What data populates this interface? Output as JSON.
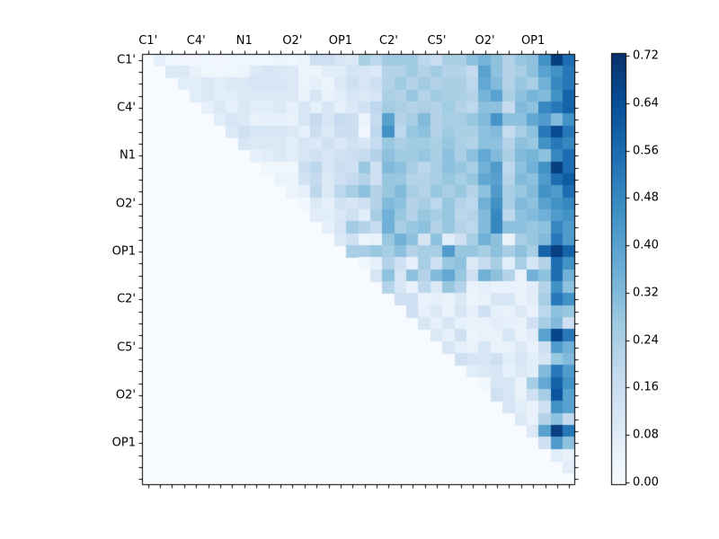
{
  "chart_data": {
    "type": "heatmap",
    "title": "",
    "xlabel": "",
    "ylabel": "",
    "n": 36,
    "label_every": 4,
    "x_tick_labels": [
      "C1'",
      "C4'",
      "N1",
      "O2'",
      "OP1",
      "C2'",
      "C5'",
      "O2'",
      "OP1"
    ],
    "y_tick_labels": [
      "C1'",
      "C4'",
      "N1",
      "O2'",
      "OP1",
      "C2'",
      "C5'",
      "O2'",
      "OP1"
    ],
    "grid": false,
    "triangle": "upper",
    "colormap_name": "Blues",
    "colormap_stops": [
      [
        0.0,
        "#f7fbff"
      ],
      [
        0.125,
        "#deebf7"
      ],
      [
        0.25,
        "#c6dbef"
      ],
      [
        0.375,
        "#9ecae1"
      ],
      [
        0.5,
        "#6baed6"
      ],
      [
        0.625,
        "#4292c6"
      ],
      [
        0.75,
        "#2171b5"
      ],
      [
        0.875,
        "#08519c"
      ],
      [
        1.0,
        "#08306b"
      ]
    ],
    "colorbar": {
      "vmin": 0.0,
      "vmax": 0.72,
      "tick_values": [
        0.0,
        0.08,
        0.16,
        0.24,
        0.32,
        0.4,
        0.48,
        0.56,
        0.64,
        0.72
      ],
      "tick_labels": [
        "0.00",
        "0.08",
        "0.16",
        "0.24",
        "0.32",
        "0.40",
        "0.48",
        "0.56",
        "0.64",
        "0.72"
      ],
      "position": "right"
    },
    "background_value_color": "#f7fbff",
    "frame_color": "#000000",
    "matrix": [
      [
        0,
        0.06,
        0.03,
        0.02,
        0.02,
        0.03,
        0.02,
        0.03,
        0.03,
        0.03,
        0.03,
        0.04,
        0.03,
        0.04,
        0.16,
        0.15,
        0.12,
        0.1,
        0.24,
        0.2,
        0.26,
        0.26,
        0.26,
        0.2,
        0.16,
        0.24,
        0.24,
        0.3,
        0.34,
        0.3,
        0.22,
        0.28,
        0.3,
        0.45,
        0.68,
        0.55
      ],
      [
        0,
        0,
        0.1,
        0.1,
        0.05,
        0.03,
        0.03,
        0.03,
        0.04,
        0.1,
        0.12,
        0.1,
        0.1,
        0.04,
        0.04,
        0.08,
        0.08,
        0.13,
        0.12,
        0.1,
        0.22,
        0.22,
        0.26,
        0.22,
        0.26,
        0.22,
        0.22,
        0.18,
        0.4,
        0.3,
        0.22,
        0.25,
        0.3,
        0.4,
        0.45,
        0.52
      ],
      [
        0,
        0,
        0,
        0.08,
        0.08,
        0.1,
        0.08,
        0.1,
        0.1,
        0.12,
        0.12,
        0.12,
        0.1,
        0.04,
        0.06,
        0.04,
        0.1,
        0.15,
        0.12,
        0.15,
        0.22,
        0.26,
        0.22,
        0.26,
        0.22,
        0.24,
        0.24,
        0.2,
        0.38,
        0.32,
        0.22,
        0.28,
        0.25,
        0.35,
        0.48,
        0.52
      ],
      [
        0,
        0,
        0,
        0,
        0.08,
        0.1,
        0.08,
        0.08,
        0.1,
        0.1,
        0.1,
        0.1,
        0.1,
        0.05,
        0.12,
        0.05,
        0.08,
        0.12,
        0.1,
        0.12,
        0.24,
        0.22,
        0.28,
        0.22,
        0.26,
        0.24,
        0.24,
        0.22,
        0.34,
        0.4,
        0.24,
        0.3,
        0.34,
        0.32,
        0.45,
        0.58
      ],
      [
        0,
        0,
        0,
        0,
        0,
        0.06,
        0.1,
        0.06,
        0.1,
        0.08,
        0.08,
        0.1,
        0.06,
        0.12,
        0.06,
        0.12,
        0.06,
        0.1,
        0.14,
        0.2,
        0.26,
        0.24,
        0.22,
        0.24,
        0.22,
        0.26,
        0.22,
        0.2,
        0.3,
        0.3,
        0.18,
        0.32,
        0.3,
        0.48,
        0.52,
        0.58
      ],
      [
        0,
        0,
        0,
        0,
        0,
        0,
        0.08,
        0.12,
        0.1,
        0.05,
        0.06,
        0.06,
        0.05,
        0.12,
        0.18,
        0.12,
        0.18,
        0.16,
        0.04,
        0.18,
        0.4,
        0.22,
        0.25,
        0.32,
        0.22,
        0.25,
        0.25,
        0.28,
        0.32,
        0.44,
        0.3,
        0.3,
        0.38,
        0.42,
        0.32,
        0.45
      ],
      [
        0,
        0,
        0,
        0,
        0,
        0,
        0,
        0.1,
        0.15,
        0.12,
        0.12,
        0.12,
        0.1,
        0.06,
        0.16,
        0.1,
        0.16,
        0.16,
        0.02,
        0.2,
        0.45,
        0.2,
        0.28,
        0.3,
        0.22,
        0.26,
        0.24,
        0.24,
        0.3,
        0.32,
        0.18,
        0.25,
        0.3,
        0.52,
        0.65,
        0.52
      ],
      [
        0,
        0,
        0,
        0,
        0,
        0,
        0,
        0,
        0.12,
        0.1,
        0.1,
        0.1,
        0.08,
        0.12,
        0.1,
        0.14,
        0.1,
        0.14,
        0.12,
        0.18,
        0.28,
        0.24,
        0.26,
        0.26,
        0.24,
        0.28,
        0.24,
        0.22,
        0.3,
        0.3,
        0.22,
        0.3,
        0.28,
        0.45,
        0.52,
        0.48
      ],
      [
        0,
        0,
        0,
        0,
        0,
        0,
        0,
        0,
        0,
        0.06,
        0.08,
        0.1,
        0.08,
        0.12,
        0.14,
        0.12,
        0.14,
        0.16,
        0.18,
        0.22,
        0.3,
        0.26,
        0.26,
        0.28,
        0.24,
        0.3,
        0.24,
        0.3,
        0.38,
        0.32,
        0.24,
        0.32,
        0.34,
        0.3,
        0.48,
        0.55
      ],
      [
        0,
        0,
        0,
        0,
        0,
        0,
        0,
        0,
        0,
        0,
        0.03,
        0.03,
        0.03,
        0.16,
        0.2,
        0.12,
        0.16,
        0.15,
        0.28,
        0.15,
        0.32,
        0.3,
        0.25,
        0.2,
        0.25,
        0.3,
        0.28,
        0.25,
        0.35,
        0.42,
        0.2,
        0.3,
        0.35,
        0.45,
        0.68,
        0.55
      ],
      [
        0,
        0,
        0,
        0,
        0,
        0,
        0,
        0,
        0,
        0,
        0,
        0.04,
        0.04,
        0.14,
        0.18,
        0.1,
        0.15,
        0.18,
        0.22,
        0.15,
        0.28,
        0.28,
        0.22,
        0.22,
        0.25,
        0.28,
        0.25,
        0.28,
        0.38,
        0.4,
        0.22,
        0.32,
        0.3,
        0.42,
        0.55,
        0.6
      ],
      [
        0,
        0,
        0,
        0,
        0,
        0,
        0,
        0,
        0,
        0,
        0,
        0,
        0.04,
        0.06,
        0.2,
        0.1,
        0.2,
        0.25,
        0.3,
        0.22,
        0.28,
        0.32,
        0.25,
        0.22,
        0.28,
        0.25,
        0.28,
        0.22,
        0.3,
        0.42,
        0.25,
        0.28,
        0.32,
        0.45,
        0.42,
        0.55
      ],
      [
        0,
        0,
        0,
        0,
        0,
        0,
        0,
        0,
        0,
        0,
        0,
        0,
        0,
        0.02,
        0.1,
        0.06,
        0.14,
        0.12,
        0.15,
        0.22,
        0.32,
        0.3,
        0.22,
        0.25,
        0.2,
        0.28,
        0.22,
        0.2,
        0.35,
        0.45,
        0.25,
        0.32,
        0.3,
        0.4,
        0.45,
        0.48
      ],
      [
        0,
        0,
        0,
        0,
        0,
        0,
        0,
        0,
        0,
        0,
        0,
        0,
        0,
        0,
        0.08,
        0.08,
        0.1,
        0.15,
        0.08,
        0.25,
        0.35,
        0.28,
        0.22,
        0.28,
        0.25,
        0.28,
        0.2,
        0.22,
        0.32,
        0.48,
        0.2,
        0.3,
        0.32,
        0.35,
        0.42,
        0.45
      ],
      [
        0,
        0,
        0,
        0,
        0,
        0,
        0,
        0,
        0,
        0,
        0,
        0,
        0,
        0,
        0,
        0.06,
        0.12,
        0.26,
        0.22,
        0.18,
        0.35,
        0.25,
        0.28,
        0.3,
        0.22,
        0.28,
        0.22,
        0.2,
        0.32,
        0.48,
        0.3,
        0.3,
        0.28,
        0.3,
        0.48,
        0.42
      ],
      [
        0,
        0,
        0,
        0,
        0,
        0,
        0,
        0,
        0,
        0,
        0,
        0,
        0,
        0,
        0,
        0,
        0.1,
        0.15,
        0.04,
        0.05,
        0.28,
        0.35,
        0.3,
        0.12,
        0.3,
        0.08,
        0.15,
        0.25,
        0.35,
        0.3,
        0.05,
        0.25,
        0.28,
        0.32,
        0.52,
        0.42
      ],
      [
        0,
        0,
        0,
        0,
        0,
        0,
        0,
        0,
        0,
        0,
        0,
        0,
        0,
        0,
        0,
        0,
        0,
        0.25,
        0.25,
        0.28,
        0.25,
        0.3,
        0.22,
        0.25,
        0.25,
        0.42,
        0.28,
        0.28,
        0.25,
        0.3,
        0.25,
        0.3,
        0.25,
        0.58,
        0.68,
        0.58
      ],
      [
        0,
        0,
        0,
        0,
        0,
        0,
        0,
        0,
        0,
        0,
        0,
        0,
        0,
        0,
        0,
        0,
        0,
        0,
        0.03,
        0.06,
        0.22,
        0.15,
        0.06,
        0.25,
        0.15,
        0.28,
        0.3,
        0.1,
        0.18,
        0.25,
        0.08,
        0.25,
        0.12,
        0.22,
        0.55,
        0.45
      ],
      [
        0,
        0,
        0,
        0,
        0,
        0,
        0,
        0,
        0,
        0,
        0,
        0,
        0,
        0,
        0,
        0,
        0,
        0,
        0,
        0.12,
        0.3,
        0.12,
        0.3,
        0.22,
        0.32,
        0.38,
        0.28,
        0.15,
        0.35,
        0.3,
        0.22,
        0.05,
        0.35,
        0.3,
        0.55,
        0.35
      ],
      [
        0,
        0,
        0,
        0,
        0,
        0,
        0,
        0,
        0,
        0,
        0,
        0,
        0,
        0,
        0,
        0,
        0,
        0,
        0,
        0,
        0.22,
        0.12,
        0.05,
        0.2,
        0.1,
        0.28,
        0.22,
        0.05,
        0.06,
        0.05,
        0.05,
        0.05,
        0.08,
        0.22,
        0.45,
        0.3
      ],
      [
        0,
        0,
        0,
        0,
        0,
        0,
        0,
        0,
        0,
        0,
        0,
        0,
        0,
        0,
        0,
        0,
        0,
        0,
        0,
        0,
        0,
        0.15,
        0.15,
        0.05,
        0.06,
        0.05,
        0.1,
        0.04,
        0.05,
        0.12,
        0.12,
        0.05,
        0.08,
        0.25,
        0.52,
        0.45
      ],
      [
        0,
        0,
        0,
        0,
        0,
        0,
        0,
        0,
        0,
        0,
        0,
        0,
        0,
        0,
        0,
        0,
        0,
        0,
        0,
        0,
        0,
        0,
        0.15,
        0.06,
        0.1,
        0.05,
        0.12,
        0.06,
        0.15,
        0.06,
        0.05,
        0.1,
        0.05,
        0.2,
        0.3,
        0.28
      ],
      [
        0,
        0,
        0,
        0,
        0,
        0,
        0,
        0,
        0,
        0,
        0,
        0,
        0,
        0,
        0,
        0,
        0,
        0,
        0,
        0,
        0,
        0,
        0,
        0.12,
        0.06,
        0.12,
        0.06,
        0.05,
        0.05,
        0.08,
        0.06,
        0.05,
        0.15,
        0.25,
        0.32,
        0.15
      ],
      [
        0,
        0,
        0,
        0,
        0,
        0,
        0,
        0,
        0,
        0,
        0,
        0,
        0,
        0,
        0,
        0,
        0,
        0,
        0,
        0,
        0,
        0,
        0,
        0,
        0.1,
        0.06,
        0.15,
        0.04,
        0.05,
        0.05,
        0.12,
        0.05,
        0.08,
        0.4,
        0.66,
        0.52
      ],
      [
        0,
        0,
        0,
        0,
        0,
        0,
        0,
        0,
        0,
        0,
        0,
        0,
        0,
        0,
        0,
        0,
        0,
        0,
        0,
        0,
        0,
        0,
        0,
        0,
        0,
        0.12,
        0.06,
        0.05,
        0.12,
        0.05,
        0.05,
        0.1,
        0.05,
        0.15,
        0.42,
        0.35
      ],
      [
        0,
        0,
        0,
        0,
        0,
        0,
        0,
        0,
        0,
        0,
        0,
        0,
        0,
        0,
        0,
        0,
        0,
        0,
        0,
        0,
        0,
        0,
        0,
        0,
        0,
        0,
        0.15,
        0.12,
        0.12,
        0.15,
        0.08,
        0.12,
        0.08,
        0.12,
        0.28,
        0.32
      ],
      [
        0,
        0,
        0,
        0,
        0,
        0,
        0,
        0,
        0,
        0,
        0,
        0,
        0,
        0,
        0,
        0,
        0,
        0,
        0,
        0,
        0,
        0,
        0,
        0,
        0,
        0,
        0,
        0.08,
        0.1,
        0.12,
        0.06,
        0.1,
        0.08,
        0.32,
        0.52,
        0.42
      ],
      [
        0,
        0,
        0,
        0,
        0,
        0,
        0,
        0,
        0,
        0,
        0,
        0,
        0,
        0,
        0,
        0,
        0,
        0,
        0,
        0,
        0,
        0,
        0,
        0,
        0,
        0,
        0,
        0,
        0.03,
        0.12,
        0.12,
        0.05,
        0.25,
        0.38,
        0.58,
        0.45
      ],
      [
        0,
        0,
        0,
        0,
        0,
        0,
        0,
        0,
        0,
        0,
        0,
        0,
        0,
        0,
        0,
        0,
        0,
        0,
        0,
        0,
        0,
        0,
        0,
        0,
        0,
        0,
        0,
        0,
        0,
        0.15,
        0.12,
        0.05,
        0.15,
        0.25,
        0.62,
        0.4
      ],
      [
        0,
        0,
        0,
        0,
        0,
        0,
        0,
        0,
        0,
        0,
        0,
        0,
        0,
        0,
        0,
        0,
        0,
        0,
        0,
        0,
        0,
        0,
        0,
        0,
        0,
        0,
        0,
        0,
        0,
        0,
        0.12,
        0.08,
        0.05,
        0.15,
        0.45,
        0.4
      ],
      [
        0,
        0,
        0,
        0,
        0,
        0,
        0,
        0,
        0,
        0,
        0,
        0,
        0,
        0,
        0,
        0,
        0,
        0,
        0,
        0,
        0,
        0,
        0,
        0,
        0,
        0,
        0,
        0,
        0,
        0,
        0,
        0.1,
        0.05,
        0.22,
        0.3,
        0.18
      ],
      [
        0,
        0,
        0,
        0,
        0,
        0,
        0,
        0,
        0,
        0,
        0,
        0,
        0,
        0,
        0,
        0,
        0,
        0,
        0,
        0,
        0,
        0,
        0,
        0,
        0,
        0,
        0,
        0,
        0,
        0,
        0,
        0,
        0.1,
        0.4,
        0.68,
        0.52
      ],
      [
        0,
        0,
        0,
        0,
        0,
        0,
        0,
        0,
        0,
        0,
        0,
        0,
        0,
        0,
        0,
        0,
        0,
        0,
        0,
        0,
        0,
        0,
        0,
        0,
        0,
        0,
        0,
        0,
        0,
        0,
        0,
        0,
        0,
        0.15,
        0.42,
        0.3
      ],
      [
        0,
        0,
        0,
        0,
        0,
        0,
        0,
        0,
        0,
        0,
        0,
        0,
        0,
        0,
        0,
        0,
        0,
        0,
        0,
        0,
        0,
        0,
        0,
        0,
        0,
        0,
        0,
        0,
        0,
        0,
        0,
        0,
        0,
        0,
        0.08,
        0.05
      ],
      [
        0,
        0,
        0,
        0,
        0,
        0,
        0,
        0,
        0,
        0,
        0,
        0,
        0,
        0,
        0,
        0,
        0,
        0,
        0,
        0,
        0,
        0,
        0,
        0,
        0,
        0,
        0,
        0,
        0,
        0,
        0,
        0,
        0,
        0,
        0,
        0.08
      ],
      [
        0,
        0,
        0,
        0,
        0,
        0,
        0,
        0,
        0,
        0,
        0,
        0,
        0,
        0,
        0,
        0,
        0,
        0,
        0,
        0,
        0,
        0,
        0,
        0,
        0,
        0,
        0,
        0,
        0,
        0,
        0,
        0,
        0,
        0,
        0,
        0
      ]
    ]
  }
}
